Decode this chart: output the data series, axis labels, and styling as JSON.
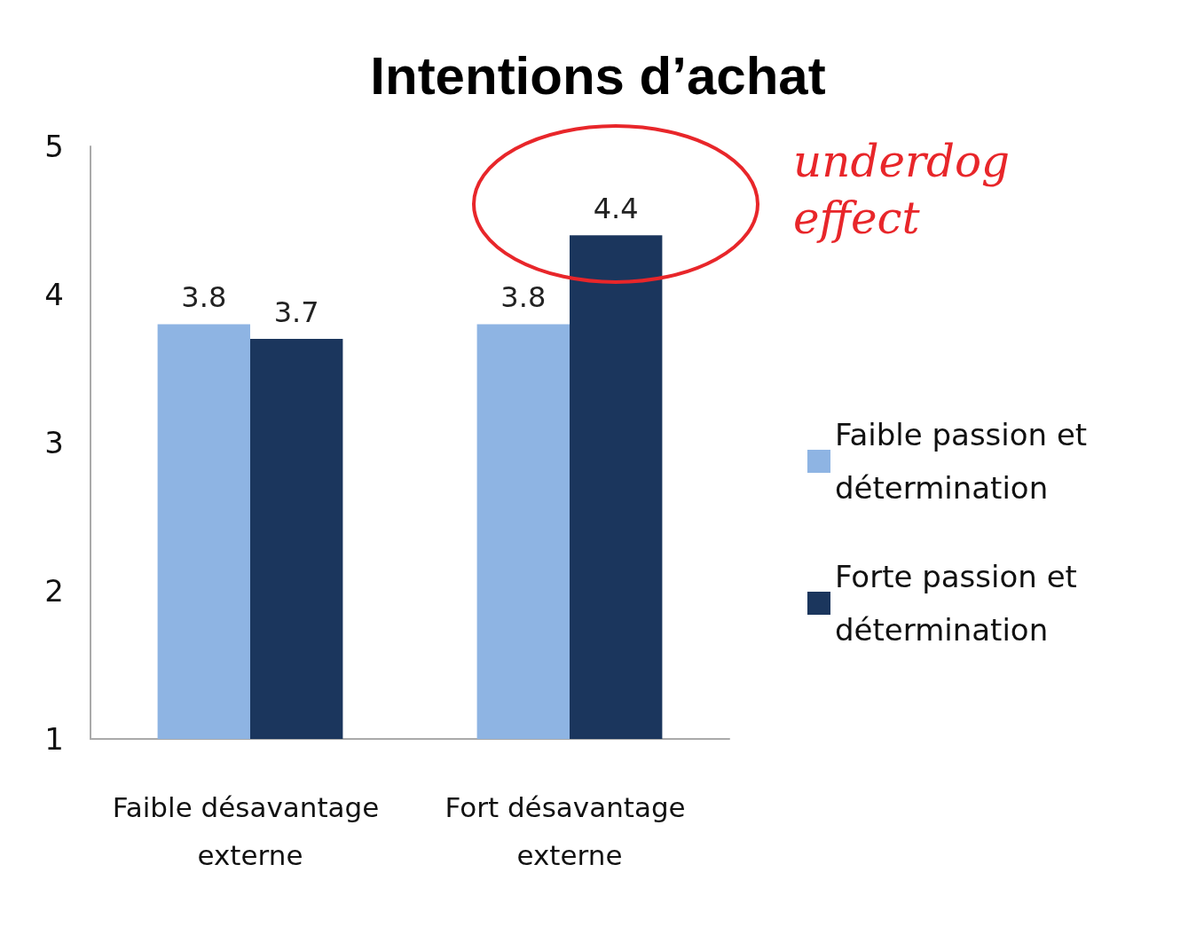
{
  "chart_data": {
    "type": "bar",
    "title": "Intentions d’achat",
    "categories": [
      "Faible désavantage externe",
      "Fort désavantage externe"
    ],
    "series": [
      {
        "name": "Faible passion et détermination",
        "color": "#8eb4e3",
        "values": [
          3.8,
          3.8
        ]
      },
      {
        "name": "Forte passion et détermination",
        "color": "#1b365d",
        "values": [
          3.7,
          4.4
        ]
      }
    ],
    "ylim": [
      1,
      5
    ],
    "yticks": [
      1,
      2,
      3,
      4,
      5
    ],
    "grid": false,
    "legend": "right",
    "data_labels": true,
    "annotations": [
      "underdog effect"
    ]
  }
}
